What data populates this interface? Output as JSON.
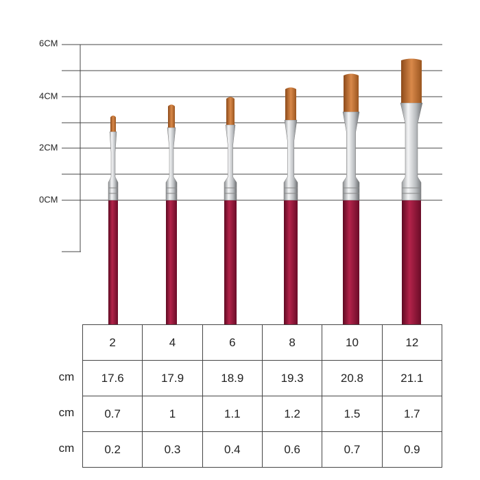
{
  "ruler": {
    "labels": [
      "6CM",
      "4CM",
      "2CM",
      "0CM"
    ]
  },
  "table": {
    "header": [
      "2",
      "4",
      "6",
      "8",
      "10",
      "12"
    ],
    "rows": [
      {
        "label": "cm",
        "cells": [
          "17.6",
          "17.9",
          "18.9",
          "19.3",
          "20.8",
          "21.1"
        ]
      },
      {
        "label": "cm",
        "cells": [
          "0.7",
          "1",
          "1.1",
          "1.2",
          "1.5",
          "1.7"
        ]
      },
      {
        "label": "cm",
        "cells": [
          "0.2",
          "0.3",
          "0.4",
          "0.6",
          "0.7",
          "0.9"
        ]
      }
    ]
  }
}
